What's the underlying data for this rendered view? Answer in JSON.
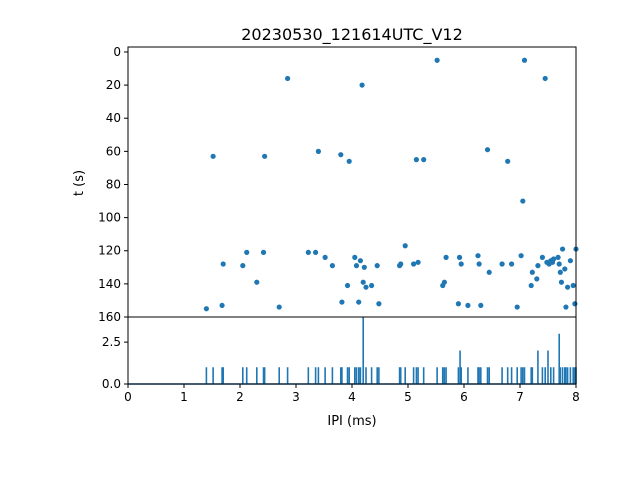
{
  "chart_data": {
    "title": "20230530_121614UTC_V12",
    "colors": {
      "series": "#1f77b4",
      "axes": "#000000",
      "background": "#ffffff"
    },
    "panels": [
      {
        "type": "scatter",
        "ylabel": "t (s)",
        "y_inverted": true,
        "xlim": [
          0,
          8
        ],
        "ylim": [
          160,
          -3
        ],
        "yticks": [
          0,
          20,
          40,
          60,
          80,
          100,
          120,
          140,
          160
        ],
        "ytick_labels": [
          "0",
          "20",
          "40",
          "60",
          "80",
          "100",
          "120",
          "140",
          "160"
        ],
        "points": [
          [
            1.4,
            155
          ],
          [
            1.52,
            63
          ],
          [
            1.68,
            153
          ],
          [
            1.7,
            128
          ],
          [
            2.05,
            129
          ],
          [
            2.12,
            121
          ],
          [
            2.3,
            139
          ],
          [
            2.42,
            121
          ],
          [
            2.44,
            63
          ],
          [
            2.7,
            154
          ],
          [
            2.85,
            16
          ],
          [
            3.22,
            121
          ],
          [
            3.35,
            121
          ],
          [
            3.4,
            60
          ],
          [
            3.52,
            124
          ],
          [
            3.65,
            129
          ],
          [
            3.8,
            62
          ],
          [
            3.82,
            151
          ],
          [
            3.92,
            141
          ],
          [
            3.95,
            66
          ],
          [
            4.05,
            124
          ],
          [
            4.08,
            129
          ],
          [
            4.12,
            151
          ],
          [
            4.15,
            126
          ],
          [
            4.18,
            20
          ],
          [
            4.2,
            139
          ],
          [
            4.22,
            130
          ],
          [
            4.25,
            142
          ],
          [
            4.35,
            141
          ],
          [
            4.45,
            129
          ],
          [
            4.48,
            152
          ],
          [
            4.85,
            129
          ],
          [
            4.87,
            128
          ],
          [
            4.95,
            117
          ],
          [
            5.1,
            128
          ],
          [
            5.15,
            65
          ],
          [
            5.18,
            127
          ],
          [
            5.28,
            65
          ],
          [
            5.52,
            5
          ],
          [
            5.62,
            141
          ],
          [
            5.65,
            139
          ],
          [
            5.68,
            124
          ],
          [
            5.9,
            152
          ],
          [
            5.92,
            124
          ],
          [
            5.95,
            128
          ],
          [
            6.07,
            153
          ],
          [
            6.25,
            123
          ],
          [
            6.27,
            128
          ],
          [
            6.3,
            153
          ],
          [
            6.42,
            59
          ],
          [
            6.45,
            133
          ],
          [
            6.68,
            128
          ],
          [
            6.78,
            66
          ],
          [
            6.85,
            128
          ],
          [
            6.95,
            154
          ],
          [
            7.02,
            123
          ],
          [
            7.05,
            90
          ],
          [
            7.08,
            5
          ],
          [
            7.2,
            141
          ],
          [
            7.22,
            133
          ],
          [
            7.3,
            137
          ],
          [
            7.32,
            129
          ],
          [
            7.4,
            124
          ],
          [
            7.45,
            16
          ],
          [
            7.48,
            127
          ],
          [
            7.52,
            128
          ],
          [
            7.55,
            126
          ],
          [
            7.58,
            127
          ],
          [
            7.6,
            125
          ],
          [
            7.68,
            124
          ],
          [
            7.7,
            128
          ],
          [
            7.72,
            133
          ],
          [
            7.74,
            139
          ],
          [
            7.76,
            119
          ],
          [
            7.8,
            131
          ],
          [
            7.82,
            154
          ],
          [
            7.85,
            142
          ],
          [
            7.9,
            126
          ],
          [
            7.95,
            141
          ],
          [
            7.98,
            152
          ],
          [
            8.0,
            119
          ]
        ]
      },
      {
        "type": "histogram",
        "xlabel": "IPI (ms)",
        "xlim": [
          0,
          8
        ],
        "ylim": [
          0,
          4
        ],
        "xticks": [
          0,
          1,
          2,
          3,
          4,
          5,
          6,
          7,
          8
        ],
        "xtick_labels": [
          "0",
          "1",
          "2",
          "3",
          "4",
          "5",
          "6",
          "7",
          "8"
        ],
        "yticks": [
          0.0,
          2.5
        ],
        "ytick_labels": [
          "0.0",
          "2.5"
        ],
        "bins": [
          [
            1.4,
            1
          ],
          [
            1.52,
            1
          ],
          [
            1.68,
            1
          ],
          [
            1.7,
            1
          ],
          [
            2.05,
            1
          ],
          [
            2.12,
            1
          ],
          [
            2.3,
            1
          ],
          [
            2.42,
            1
          ],
          [
            2.44,
            1
          ],
          [
            2.7,
            1
          ],
          [
            2.85,
            1
          ],
          [
            3.22,
            1
          ],
          [
            3.35,
            1
          ],
          [
            3.4,
            1
          ],
          [
            3.52,
            1
          ],
          [
            3.65,
            1
          ],
          [
            3.8,
            1
          ],
          [
            3.82,
            1
          ],
          [
            3.92,
            1
          ],
          [
            3.95,
            1
          ],
          [
            4.05,
            1
          ],
          [
            4.08,
            1
          ],
          [
            4.12,
            1
          ],
          [
            4.15,
            1
          ],
          [
            4.2,
            4
          ],
          [
            4.25,
            1
          ],
          [
            4.35,
            1
          ],
          [
            4.45,
            1
          ],
          [
            4.48,
            1
          ],
          [
            4.85,
            1
          ],
          [
            4.87,
            1
          ],
          [
            4.95,
            1
          ],
          [
            5.1,
            1
          ],
          [
            5.15,
            1
          ],
          [
            5.18,
            1
          ],
          [
            5.28,
            1
          ],
          [
            5.52,
            1
          ],
          [
            5.62,
            1
          ],
          [
            5.65,
            1
          ],
          [
            5.68,
            1
          ],
          [
            5.9,
            1
          ],
          [
            5.93,
            2
          ],
          [
            5.95,
            1
          ],
          [
            6.07,
            1
          ],
          [
            6.25,
            1
          ],
          [
            6.27,
            1
          ],
          [
            6.3,
            1
          ],
          [
            6.42,
            1
          ],
          [
            6.45,
            1
          ],
          [
            6.68,
            1
          ],
          [
            6.78,
            1
          ],
          [
            6.85,
            1
          ],
          [
            6.95,
            1
          ],
          [
            7.02,
            1
          ],
          [
            7.05,
            1
          ],
          [
            7.08,
            1
          ],
          [
            7.2,
            1
          ],
          [
            7.22,
            1
          ],
          [
            7.32,
            2
          ],
          [
            7.4,
            1
          ],
          [
            7.45,
            1
          ],
          [
            7.5,
            2
          ],
          [
            7.55,
            1
          ],
          [
            7.6,
            1
          ],
          [
            7.7,
            3
          ],
          [
            7.72,
            1
          ],
          [
            7.76,
            1
          ],
          [
            7.8,
            1
          ],
          [
            7.82,
            1
          ],
          [
            7.85,
            1
          ],
          [
            7.9,
            1
          ],
          [
            7.95,
            1
          ],
          [
            7.98,
            1
          ],
          [
            8.0,
            1
          ]
        ]
      }
    ]
  }
}
